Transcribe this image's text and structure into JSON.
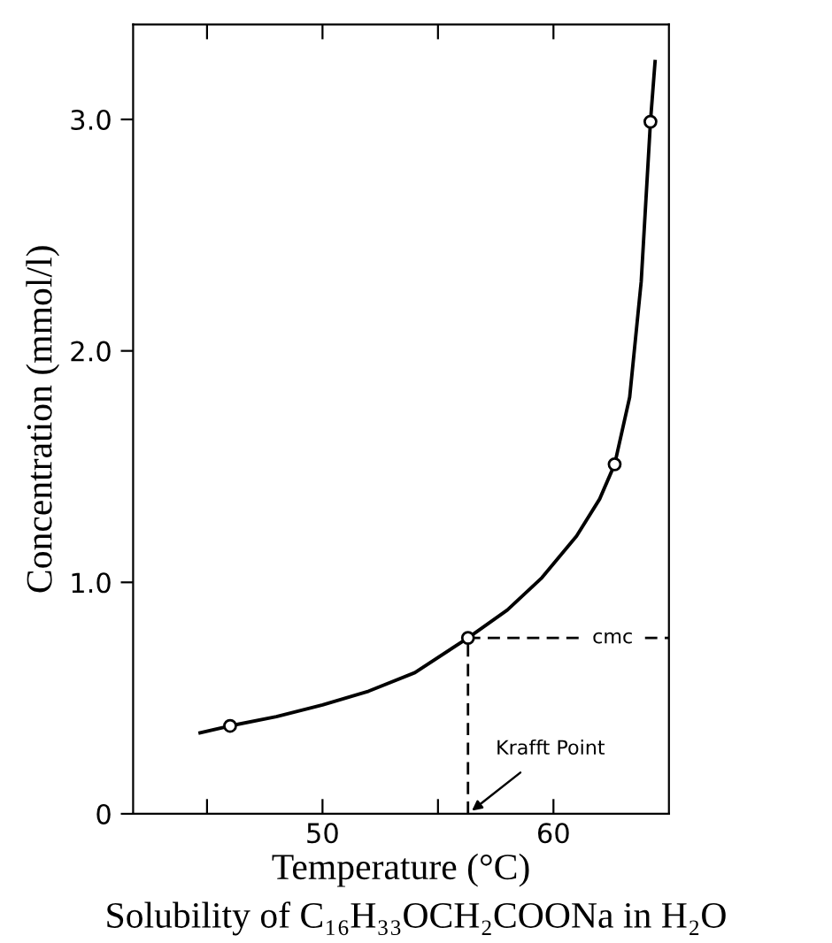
{
  "chart_data": {
    "type": "line",
    "title": "Solubility of C₁₆H₃₃OCH₂COONa in H₂O",
    "xlabel": "Temperature (°C)",
    "ylabel": "Concentration (mmol/l)",
    "series": [
      {
        "color": "#000000",
        "x": [
          44.7,
          46.0,
          48.0,
          50.0,
          52.0,
          54.0,
          56.3,
          58.0,
          59.5,
          61.0,
          62.0,
          62.65,
          63.3,
          63.8,
          64.2,
          64.4
        ],
        "values": [
          0.35,
          0.38,
          0.42,
          0.47,
          0.53,
          0.61,
          0.76,
          0.88,
          1.02,
          1.2,
          1.36,
          1.51,
          1.8,
          2.3,
          2.99,
          3.25
        ]
      },
      {
        "type": "scatter",
        "color": "#000000",
        "marker": "circle",
        "x": [
          46.0,
          56.3,
          62.65,
          64.2
        ],
        "values": [
          0.38,
          0.76,
          1.51,
          2.99
        ]
      }
    ],
    "ref_lines": [
      {
        "axis": "y",
        "value": 0.76,
        "label": "cmc",
        "color": "#000000",
        "line_style": "dashed"
      },
      {
        "axis": "x",
        "value": 56.3,
        "label": "Krafft Point",
        "color": "#000000",
        "line_style": "dashed"
      }
    ],
    "xlim": [
      41.8,
      65.0
    ],
    "ylim": [
      0,
      3.41
    ],
    "xticks": [
      {
        "value": 45,
        "label": null
      },
      50,
      {
        "value": 55,
        "label": null
      },
      60
    ],
    "yticks": [
      {
        "value": 0,
        "label": "0"
      },
      {
        "value": 1,
        "label": "1.0"
      },
      {
        "value": 2,
        "label": "2.0"
      },
      {
        "value": 3,
        "label": "3.0"
      }
    ],
    "grid": false,
    "legend": false
  }
}
